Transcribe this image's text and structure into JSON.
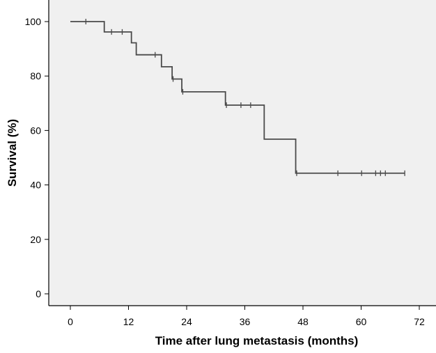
{
  "chart_data": {
    "type": "line",
    "subtype": "kaplan-meier-step",
    "title": "",
    "xlabel": "Time after lung metastasis (months)",
    "ylabel": "Survival (%)",
    "xlim": [
      0,
      72
    ],
    "ylim": [
      0,
      100
    ],
    "xticks": [
      0,
      12,
      24,
      36,
      48,
      60,
      72
    ],
    "yticks": [
      0,
      20,
      40,
      60,
      80,
      100
    ],
    "grid": false,
    "legend": "none",
    "plot_background": "#f0f0f0",
    "line_color": "#4a4a4a",
    "series": [
      {
        "steps": [
          {
            "x": 0,
            "y": 100
          },
          {
            "x": 7,
            "y": 96.2
          },
          {
            "x": 12.6,
            "y": 92.2
          },
          {
            "x": 13.6,
            "y": 87.8
          },
          {
            "x": 18.8,
            "y": 83.4
          },
          {
            "x": 21,
            "y": 78.9
          },
          {
            "x": 23,
            "y": 74.2
          },
          {
            "x": 32,
            "y": 69.3
          },
          {
            "x": 40,
            "y": 56.8
          },
          {
            "x": 46.5,
            "y": 44.3
          }
        ],
        "end_x": 69,
        "censored": [
          {
            "x": 3.2,
            "y": 100
          },
          {
            "x": 8.5,
            "y": 96.2
          },
          {
            "x": 10.7,
            "y": 96.2
          },
          {
            "x": 17.5,
            "y": 87.8
          },
          {
            "x": 21.2,
            "y": 78.9
          },
          {
            "x": 23.2,
            "y": 74.2
          },
          {
            "x": 32.2,
            "y": 69.3
          },
          {
            "x": 35.2,
            "y": 69.3
          },
          {
            "x": 37.2,
            "y": 69.3
          },
          {
            "x": 46.7,
            "y": 44.3
          },
          {
            "x": 55.2,
            "y": 44.3
          },
          {
            "x": 60.1,
            "y": 44.3
          },
          {
            "x": 63,
            "y": 44.3
          },
          {
            "x": 64,
            "y": 44.3
          },
          {
            "x": 65,
            "y": 44.3
          },
          {
            "x": 69,
            "y": 44.3
          }
        ]
      }
    ]
  }
}
